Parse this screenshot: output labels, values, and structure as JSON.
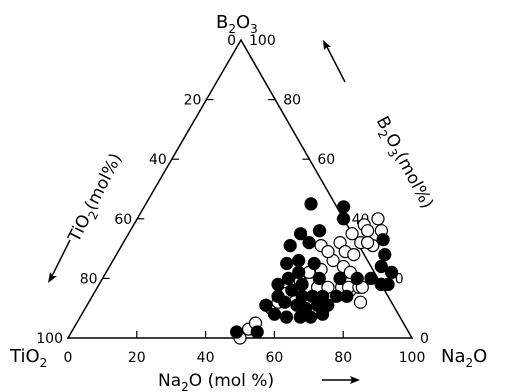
{
  "chart_data": {
    "type": "scatter",
    "diagram": "ternary",
    "vertices": {
      "top": {
        "label": "B",
        "sub": "2",
        "tail": "O",
        "sub2": "3"
      },
      "left": {
        "label": "TiO",
        "sub": "2"
      },
      "right": {
        "label": "Na",
        "sub": "2",
        "tail": "O"
      }
    },
    "axes": {
      "b2o3": {
        "label_pre": "B",
        "sub": "2",
        "mid": "O",
        "sub2": "3",
        "post": "(mol%)",
        "ticks": [
          "0",
          "20",
          "40",
          "60",
          "80",
          "100"
        ]
      },
      "tio2": {
        "label_pre": "TiO",
        "sub": "2",
        "post": "(mol%)",
        "ticks": [
          "0",
          "20",
          "40",
          "60",
          "80",
          "100"
        ]
      },
      "na2o": {
        "label_pre": "Na",
        "sub": "2",
        "post": "O (mol %)",
        "ticks": [
          "0",
          "20",
          "40",
          "60",
          "80",
          "100"
        ]
      }
    },
    "series": [
      {
        "marker": "open-circle",
        "points": [
          [
            50,
            0
          ],
          [
            51,
            3
          ],
          [
            52,
            5
          ],
          [
            54,
            10
          ],
          [
            55,
            12
          ],
          [
            56,
            15
          ],
          [
            58,
            19
          ],
          [
            59,
            22
          ],
          [
            58,
            31
          ],
          [
            62,
            23
          ],
          [
            64,
            26
          ],
          [
            61,
            29
          ],
          [
            63,
            32
          ],
          [
            66,
            29
          ],
          [
            65,
            35
          ],
          [
            67,
            38
          ],
          [
            69,
            36
          ],
          [
            69,
            32
          ],
          [
            69,
            28
          ],
          [
            68,
            24
          ],
          [
            70,
            40
          ],
          [
            71,
            22
          ],
          [
            74,
            16
          ],
          [
            79,
            12
          ],
          [
            73,
            31
          ],
          [
            71,
            32
          ],
          [
            73,
            36
          ],
          [
            64,
            17
          ],
          [
            67,
            17
          ],
          [
            71,
            17
          ],
          [
            73,
            17
          ],
          [
            76,
            17
          ],
          [
            77,
            17
          ],
          [
            82,
            18
          ]
        ]
      },
      {
        "marker": "filled-circle",
        "points": [
          [
            48,
            2
          ],
          [
            54,
            14
          ],
          [
            52,
            18
          ],
          [
            56,
            22
          ],
          [
            51,
            25
          ],
          [
            54,
            26
          ],
          [
            49,
            31
          ],
          [
            54,
            32
          ],
          [
            50,
            35
          ],
          [
            48,
            45
          ],
          [
            55,
            36
          ],
          [
            58,
            44
          ],
          [
            60,
            40
          ],
          [
            75,
            33
          ],
          [
            78,
            28
          ],
          [
            79,
            24
          ],
          [
            83,
            22
          ],
          [
            84,
            18
          ],
          [
            82,
            18
          ],
          [
            59,
            18
          ],
          [
            54,
            20
          ],
          [
            59,
            25
          ],
          [
            63,
            20
          ],
          [
            69,
            20
          ],
          [
            74,
            20
          ],
          [
            78,
            20
          ],
          [
            57,
            16
          ],
          [
            61,
            14
          ],
          [
            64,
            14
          ],
          [
            67,
            14
          ],
          [
            71,
            14
          ],
          [
            74,
            14
          ],
          [
            52,
            11
          ],
          [
            57,
            12
          ],
          [
            61,
            11
          ],
          [
            64,
            10
          ],
          [
            67,
            11
          ],
          [
            70,
            11
          ],
          [
            56,
            8
          ],
          [
            60,
            7
          ],
          [
            64,
            7
          ],
          [
            67,
            7
          ],
          [
            70,
            8
          ],
          [
            54,
            2
          ]
        ]
      }
    ]
  }
}
